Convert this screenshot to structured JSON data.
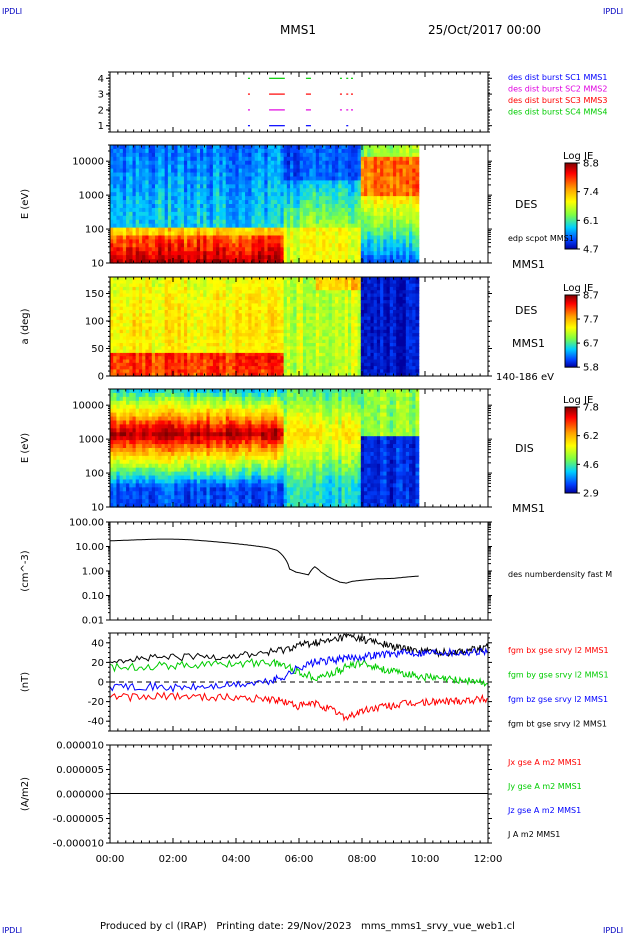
{
  "header": {
    "corner_label": "IPDLI",
    "title": "MMS1",
    "date": "25/Oct/2017 00:00"
  },
  "footer": {
    "text": "Produced by cl (IRAP)   Printing date: 29/Nov/2023   mms_mms1_srvy_vue_web1.cl"
  },
  "time_axis": {
    "ticks": [
      "00:00",
      "02:00",
      "04:00",
      "06:00",
      "08:00",
      "10:00",
      "12:00"
    ]
  },
  "colors": {
    "blue": "#0000ff",
    "magenta": "#e000e0",
    "red": "#ff0000",
    "green": "#00cc00",
    "black": "#000000"
  },
  "chart_data": [
    {
      "type": "scatter",
      "panel": "burst",
      "yticks": [
        "1",
        "2",
        "3",
        "4"
      ],
      "ylim": [
        0.6,
        4.4
      ],
      "xlim": [
        0,
        12
      ],
      "legend": [
        {
          "label": "des dist burst SC1 MMS1",
          "color": "#0000ff"
        },
        {
          "label": "des dist burst SC2 MMS2",
          "color": "#e000e0"
        },
        {
          "label": "des dist burst SC3 MMS3",
          "color": "#ff0000"
        },
        {
          "label": "des dist burst SC4 MMS4",
          "color": "#00cc00"
        }
      ],
      "series": [
        {
          "level": 4,
          "color": "#00cc00",
          "segments": [
            [
              4.38,
              4.42
            ],
            [
              5.05,
              5.55
            ],
            [
              6.22,
              6.38
            ],
            [
              7.3,
              7.35
            ],
            [
              7.5,
              7.55
            ],
            [
              7.65,
              7.7
            ]
          ]
        },
        {
          "level": 3,
          "color": "#ff0000",
          "segments": [
            [
              4.38,
              4.42
            ],
            [
              5.05,
              5.55
            ],
            [
              6.22,
              6.38
            ],
            [
              7.3,
              7.35
            ],
            [
              7.5,
              7.55
            ],
            [
              7.65,
              7.7
            ]
          ]
        },
        {
          "level": 2,
          "color": "#e000e0",
          "segments": [
            [
              4.38,
              4.42
            ],
            [
              5.05,
              5.55
            ],
            [
              6.22,
              6.38
            ],
            [
              7.3,
              7.35
            ],
            [
              7.5,
              7.55
            ],
            [
              7.65,
              7.7
            ]
          ]
        },
        {
          "level": 1,
          "color": "#0000ff",
          "segments": [
            [
              4.38,
              4.42
            ],
            [
              5.05,
              5.55
            ],
            [
              6.22,
              6.38
            ],
            [
              7.5,
              7.55
            ]
          ]
        }
      ]
    },
    {
      "type": "heatmap",
      "panel": "des-energy",
      "ylabel": "E (eV)",
      "yticks": [
        "10",
        "100",
        "1000",
        "10000"
      ],
      "ylim": [
        10,
        30000
      ],
      "yscale": "log",
      "xlim": [
        0,
        12
      ],
      "data_end": 9.8,
      "colorbar": {
        "title": "Log JE",
        "ticks": [
          "8.8",
          "7.4",
          "6.1",
          "4.7"
        ],
        "min": 4.7,
        "max": 8.8
      },
      "right_labels": [
        "DES",
        "edp scpot MMS1",
        "MMS1"
      ]
    },
    {
      "type": "heatmap",
      "panel": "des-pitch",
      "ylabel": "a (deg)",
      "yticks": [
        "0",
        "50",
        "100",
        "150"
      ],
      "ylim": [
        0,
        180
      ],
      "xlim": [
        0,
        12
      ],
      "data_end": 9.8,
      "colorbar": {
        "title": "Log JE",
        "ticks": [
          "8.7",
          "7.7",
          "6.7",
          "5.8"
        ],
        "min": 5.8,
        "max": 8.7
      },
      "right_labels": [
        "DES",
        "MMS1",
        "140-186 eV"
      ]
    },
    {
      "type": "heatmap",
      "panel": "dis-energy",
      "ylabel": "E (eV)",
      "yticks": [
        "10",
        "100",
        "1000",
        "10000"
      ],
      "ylim": [
        10,
        30000
      ],
      "yscale": "log",
      "xlim": [
        0,
        12
      ],
      "data_end": 9.8,
      "colorbar": {
        "title": "Log JE",
        "ticks": [
          "7.8",
          "6.2",
          "4.6",
          "2.9"
        ],
        "min": 2.9,
        "max": 7.8
      },
      "right_labels": [
        "DIS",
        "MMS1"
      ]
    },
    {
      "type": "line",
      "panel": "density",
      "ylabel": "(cm^-3)",
      "yticks": [
        "0.01",
        "0.10",
        "1.00",
        "10.00",
        "100.00"
      ],
      "ylim": [
        0.01,
        100
      ],
      "yscale": "log",
      "xlim": [
        0,
        12
      ],
      "legend": [
        {
          "label": "des numberdensity fast M",
          "color": "#000000"
        }
      ],
      "series": [
        {
          "name": "des numberdensity fast M",
          "color": "#000000",
          "x": [
            0.0,
            0.5,
            1.0,
            1.5,
            2.0,
            2.5,
            3.0,
            3.5,
            4.0,
            4.5,
            5.0,
            5.3,
            5.5,
            5.7,
            5.9,
            6.1,
            6.3,
            6.5,
            6.7,
            6.9,
            7.1,
            7.3,
            7.5,
            7.7,
            8.0,
            8.5,
            9.0,
            9.5,
            9.8
          ],
          "y": [
            17,
            18,
            19,
            20,
            20,
            19,
            17,
            15,
            13,
            11,
            9,
            7,
            4,
            1.2,
            0.9,
            0.8,
            0.7,
            1.5,
            0.9,
            0.6,
            0.45,
            0.35,
            0.32,
            0.38,
            0.42,
            0.48,
            0.5,
            0.58,
            0.62
          ]
        }
      ]
    },
    {
      "type": "line",
      "panel": "fgm",
      "ylabel": "(nT)",
      "yticks": [
        "-40",
        "-20",
        "0",
        "20",
        "40"
      ],
      "ylim": [
        -50,
        50
      ],
      "xlim": [
        0,
        12
      ],
      "legend": [
        {
          "label": "fgm bx gse srvy l2 MMS1",
          "color": "#ff0000"
        },
        {
          "label": "fgm by gse srvy l2 MMS1",
          "color": "#00cc00"
        },
        {
          "label": "fgm bz gse srvy l2 MMS1",
          "color": "#0000ff"
        },
        {
          "label": "fgm bt gse srvy l2 MMS1",
          "color": "#000000"
        }
      ],
      "series": [
        {
          "name": "fgm bt gse srvy l2 MMS1",
          "color": "#000000",
          "x": [
            0,
            1,
            2,
            3,
            4,
            5,
            5.5,
            6,
            6.5,
            7,
            7.5,
            8,
            8.5,
            9,
            9.5,
            10,
            10.5,
            11,
            11.5,
            12
          ],
          "y": [
            23,
            24,
            25,
            26,
            27,
            30,
            33,
            38,
            40,
            42,
            47,
            44,
            40,
            36,
            33,
            32,
            30,
            31,
            33,
            35
          ]
        },
        {
          "name": "fgm by gse srvy l2 MMS1",
          "color": "#00cc00",
          "x": [
            0,
            1,
            2,
            3,
            4,
            5,
            5.5,
            6,
            6.5,
            7,
            7.5,
            8,
            8.5,
            9,
            9.5,
            10,
            10.5,
            11,
            11.5,
            12
          ],
          "y": [
            15,
            16,
            17,
            18,
            19,
            20,
            18,
            10,
            5,
            8,
            15,
            20,
            15,
            10,
            8,
            5,
            3,
            2,
            1,
            -2
          ]
        },
        {
          "name": "fgm bz gse srvy l2 MMS1",
          "color": "#0000ff",
          "x": [
            0,
            1,
            2,
            3,
            4,
            5,
            5.5,
            6,
            6.5,
            7,
            7.5,
            8,
            8.5,
            9,
            9.5,
            10,
            10.5,
            11,
            11.5,
            12
          ],
          "y": [
            -5,
            -4,
            -6,
            -5,
            -3,
            0,
            5,
            15,
            20,
            22,
            24,
            26,
            28,
            29,
            30,
            30,
            31,
            30,
            31,
            32
          ]
        },
        {
          "name": "fgm bx gse srvy l2 MMS1",
          "color": "#ff0000",
          "x": [
            0,
            1,
            2,
            3,
            4,
            5,
            5.5,
            6,
            6.5,
            7,
            7.5,
            8,
            8.5,
            9,
            9.5,
            10,
            10.5,
            11,
            11.5,
            12
          ],
          "y": [
            -15,
            -16,
            -14,
            -15,
            -16,
            -17,
            -20,
            -25,
            -22,
            -28,
            -36,
            -30,
            -26,
            -24,
            -22,
            -21,
            -20,
            -19,
            -18,
            -17
          ]
        }
      ]
    },
    {
      "type": "line",
      "panel": "current",
      "ylabel": "(A/m2)",
      "yticks": [
        "-0.000010",
        "-0.000005",
        "0.000000",
        "0.000005",
        "0.000010"
      ],
      "ylim": [
        -1e-05,
        1e-05
      ],
      "xlim": [
        0,
        12
      ],
      "legend": [
        {
          "label": "Jx gse A m2 MMS1",
          "color": "#ff0000"
        },
        {
          "label": "Jy gse A m2 MMS1",
          "color": "#00cc00"
        },
        {
          "label": "Jz gse A m2 MMS1",
          "color": "#0000ff"
        },
        {
          "label": "J A m2 MMS1",
          "color": "#000000"
        }
      ],
      "series": [
        {
          "name": "J A m2 MMS1",
          "color": "#000000",
          "x": [
            0,
            12
          ],
          "y": [
            1e-07,
            1e-07
          ]
        }
      ]
    }
  ]
}
